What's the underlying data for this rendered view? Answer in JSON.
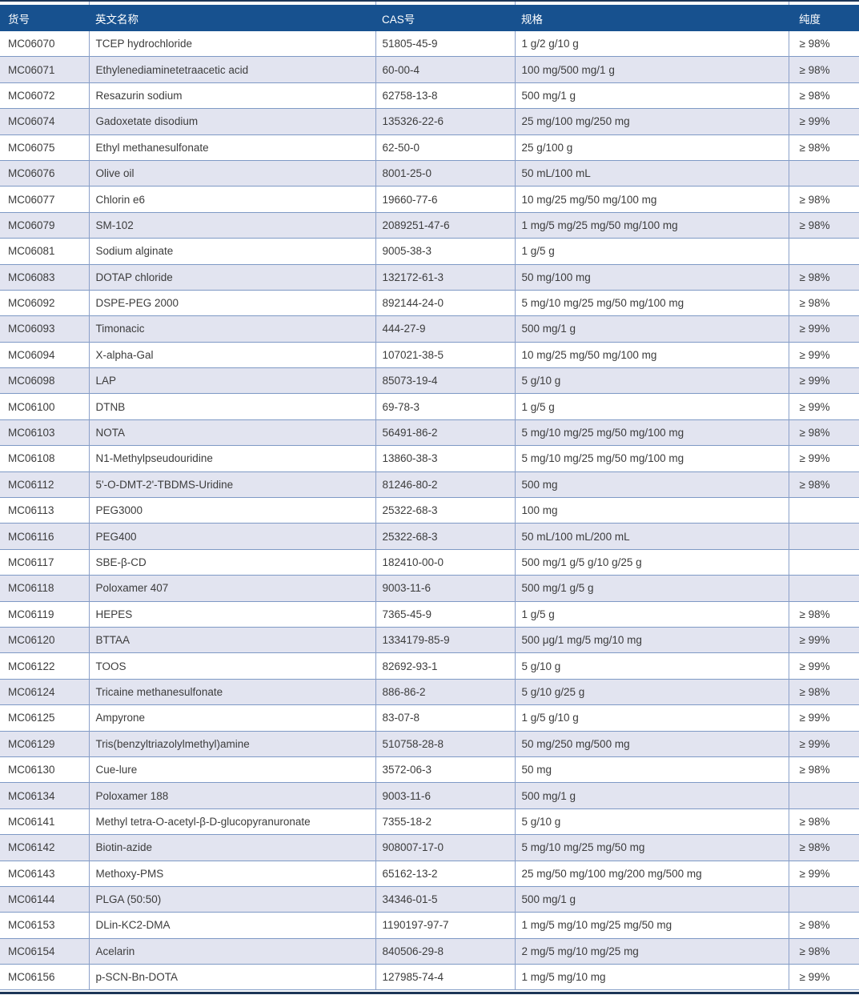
{
  "table": {
    "columns": [
      {
        "key": "item_no",
        "label": "货号"
      },
      {
        "key": "name_en",
        "label": "英文名称"
      },
      {
        "key": "cas",
        "label": "CAS号"
      },
      {
        "key": "spec",
        "label": "规格"
      },
      {
        "key": "purity",
        "label": "纯度"
      }
    ],
    "rows": [
      {
        "item_no": "MC06070",
        "name_en": "TCEP hydrochloride",
        "cas": "51805-45-9",
        "spec": "1 g/2 g/10 g",
        "purity": "≥ 98%"
      },
      {
        "item_no": "MC06071",
        "name_en": "Ethylenediaminetetraacetic acid",
        "cas": "60-00-4",
        "spec": "100 mg/500 mg/1 g",
        "purity": "≥ 98%"
      },
      {
        "item_no": "MC06072",
        "name_en": "Resazurin sodium",
        "cas": "62758-13-8",
        "spec": "500 mg/1 g",
        "purity": "≥ 98%"
      },
      {
        "item_no": "MC06074",
        "name_en": "Gadoxetate disodium",
        "cas": "135326-22-6",
        "spec": "25 mg/100 mg/250 mg",
        "purity": "≥ 99%"
      },
      {
        "item_no": "MC06075",
        "name_en": "Ethyl methanesulfonate",
        "cas": "62-50-0",
        "spec": "25 g/100 g",
        "purity": "≥ 98%"
      },
      {
        "item_no": "MC06076",
        "name_en": "Olive oil",
        "cas": "8001-25-0",
        "spec": "50 mL/100 mL",
        "purity": ""
      },
      {
        "item_no": "MC06077",
        "name_en": "Chlorin e6",
        "cas": "19660-77-6",
        "spec": "10 mg/25 mg/50 mg/100 mg",
        "purity": "≥ 98%"
      },
      {
        "item_no": "MC06079",
        "name_en": "SM-102",
        "cas": "2089251-47-6",
        "spec": "1 mg/5 mg/25 mg/50 mg/100 mg",
        "purity": "≥ 98%"
      },
      {
        "item_no": "MC06081",
        "name_en": "Sodium alginate",
        "cas": "9005-38-3",
        "spec": "1 g/5 g",
        "purity": ""
      },
      {
        "item_no": "MC06083",
        "name_en": "DOTAP chloride",
        "cas": "132172-61-3",
        "spec": "50 mg/100 mg",
        "purity": "≥ 98%"
      },
      {
        "item_no": "MC06092",
        "name_en": "DSPE-PEG 2000",
        "cas": "892144-24-0",
        "spec": "5 mg/10 mg/25 mg/50 mg/100 mg",
        "purity": "≥ 98%"
      },
      {
        "item_no": "MC06093",
        "name_en": "Timonacic",
        "cas": "444-27-9",
        "spec": "500 mg/1 g",
        "purity": "≥ 99%"
      },
      {
        "item_no": "MC06094",
        "name_en": "X-alpha-Gal",
        "cas": "107021-38-5",
        "spec": "10 mg/25 mg/50 mg/100 mg",
        "purity": "≥ 99%"
      },
      {
        "item_no": "MC06098",
        "name_en": "LAP",
        "cas": "85073-19-4",
        "spec": "5 g/10 g",
        "purity": "≥ 99%"
      },
      {
        "item_no": "MC06100",
        "name_en": "DTNB",
        "cas": "69-78-3",
        "spec": "1 g/5 g",
        "purity": "≥ 99%"
      },
      {
        "item_no": "MC06103",
        "name_en": "NOTA",
        "cas": "56491-86-2",
        "spec": "5 mg/10 mg/25 mg/50 mg/100 mg",
        "purity": "≥ 98%"
      },
      {
        "item_no": "MC06108",
        "name_en": "N1-Methylpseudouridine",
        "cas": "13860-38-3",
        "spec": "5 mg/10 mg/25 mg/50 mg/100 mg",
        "purity": "≥ 99%"
      },
      {
        "item_no": "MC06112",
        "name_en": "5'-O-DMT-2'-TBDMS-Uridine",
        "cas": "81246-80-2",
        "spec": "500 mg",
        "purity": "≥ 98%"
      },
      {
        "item_no": "MC06113",
        "name_en": "PEG3000",
        "cas": "25322-68-3",
        "spec": "100 mg",
        "purity": ""
      },
      {
        "item_no": "MC06116",
        "name_en": "PEG400",
        "cas": "25322-68-3",
        "spec": "50 mL/100 mL/200 mL",
        "purity": ""
      },
      {
        "item_no": "MC06117",
        "name_en": "SBE-β-CD",
        "cas": "182410-00-0",
        "spec": "500 mg/1 g/5 g/10 g/25 g",
        "purity": ""
      },
      {
        "item_no": "MC06118",
        "name_en": "Poloxamer 407",
        "cas": "9003-11-6",
        "spec": "500 mg/1 g/5 g",
        "purity": ""
      },
      {
        "item_no": "MC06119",
        "name_en": "HEPES",
        "cas": "7365-45-9",
        "spec": "1 g/5 g",
        "purity": "≥ 98%"
      },
      {
        "item_no": "MC06120",
        "name_en": "BTTAA",
        "cas": "1334179-85-9",
        "spec": "500 μg/1 mg/5 mg/10 mg",
        "purity": "≥ 99%"
      },
      {
        "item_no": "MC06122",
        "name_en": "TOOS",
        "cas": "82692-93-1",
        "spec": "5 g/10 g",
        "purity": "≥ 99%"
      },
      {
        "item_no": "MC06124",
        "name_en": "Tricaine methanesulfonate",
        "cas": "886-86-2",
        "spec": "5 g/10 g/25 g",
        "purity": "≥ 98%"
      },
      {
        "item_no": "MC06125",
        "name_en": "Ampyrone",
        "cas": "83-07-8",
        "spec": "1 g/5 g/10 g",
        "purity": "≥ 99%"
      },
      {
        "item_no": "MC06129",
        "name_en": "Tris(benzyltriazolylmethyl)amine",
        "cas": "510758-28-8",
        "spec": "50 mg/250 mg/500 mg",
        "purity": "≥ 99%"
      },
      {
        "item_no": "MC06130",
        "name_en": "Cue-lure",
        "cas": "3572-06-3",
        "spec": "50 mg",
        "purity": "≥ 98%"
      },
      {
        "item_no": "MC06134",
        "name_en": "Poloxamer 188",
        "cas": "9003-11-6",
        "spec": "500 mg/1 g",
        "purity": ""
      },
      {
        "item_no": "MC06141",
        "name_en": "Methyl tetra-O-acetyl-β-D-glucopyranuronate",
        "cas": "7355-18-2",
        "spec": "5 g/10 g",
        "purity": "≥ 98%"
      },
      {
        "item_no": "MC06142",
        "name_en": "Biotin-azide",
        "cas": "908007-17-0",
        "spec": "5 mg/10 mg/25 mg/50 mg",
        "purity": "≥ 98%"
      },
      {
        "item_no": "MC06143",
        "name_en": "Methoxy-PMS",
        "cas": "65162-13-2",
        "spec": "25 mg/50 mg/100 mg/200 mg/500 mg",
        "purity": "≥ 99%"
      },
      {
        "item_no": "MC06144",
        "name_en": "PLGA (50:50)",
        "cas": "34346-01-5",
        "spec": "500 mg/1 g",
        "purity": ""
      },
      {
        "item_no": "MC06153",
        "name_en": "DLin-KC2-DMA",
        "cas": "1190197-97-7",
        "spec": "1 mg/5 mg/10 mg/25 mg/50 mg",
        "purity": "≥ 98%"
      },
      {
        "item_no": "MC06154",
        "name_en": "Acelarin",
        "cas": "840506-29-8",
        "spec": "2 mg/5 mg/10 mg/25 mg",
        "purity": "≥ 98%"
      },
      {
        "item_no": "MC06156",
        "name_en": "p-SCN-Bn-DOTA",
        "cas": "127985-74-4",
        "spec": "1 mg/5 mg/10 mg",
        "purity": "≥ 99%"
      }
    ]
  },
  "colors": {
    "header_bg": "#17518f",
    "header_text": "#ffffff",
    "stripe_bg": "#e2e4f0",
    "row_border": "#7e99c5",
    "grid_line": "#8ba0c9",
    "frame_line": "#1c3557",
    "text": "#3c3c3c"
  }
}
